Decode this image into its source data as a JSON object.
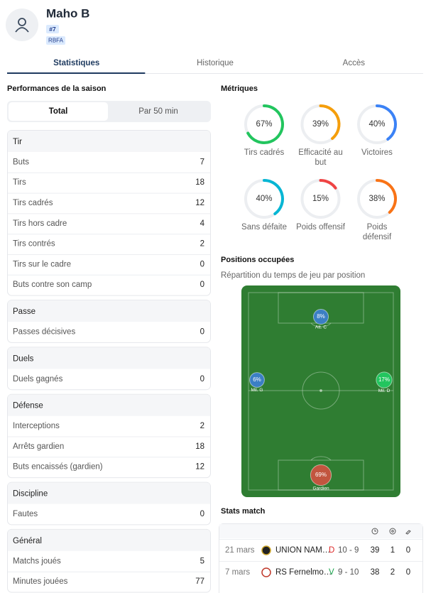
{
  "profile": {
    "name": "Maho B",
    "number": "#7",
    "club": "RBFA"
  },
  "tabs": {
    "items": [
      "Statistiques",
      "Historique",
      "Accès"
    ],
    "active": 0
  },
  "season": {
    "title": "Performances de la saison",
    "toggle": [
      "Total",
      "Par 50 min"
    ],
    "toggle_active": 0,
    "groups": [
      {
        "title": "Tir",
        "rows": [
          {
            "label": "Buts",
            "value": 7
          },
          {
            "label": "Tirs",
            "value": 18
          },
          {
            "label": "Tirs cadrés",
            "value": 12
          },
          {
            "label": "Tirs hors cadre",
            "value": 4
          },
          {
            "label": "Tirs contrés",
            "value": 2
          },
          {
            "label": "Tirs sur le cadre",
            "value": 0
          },
          {
            "label": "Buts contre son camp",
            "value": 0
          }
        ]
      },
      {
        "title": "Passe",
        "rows": [
          {
            "label": "Passes décisives",
            "value": 0
          }
        ]
      },
      {
        "title": "Duels",
        "rows": [
          {
            "label": "Duels gagnés",
            "value": 0
          }
        ]
      },
      {
        "title": "Défense",
        "rows": [
          {
            "label": "Interceptions",
            "value": 2
          },
          {
            "label": "Arrêts gardien",
            "value": 18
          },
          {
            "label": "Buts encaissés (gardien)",
            "value": 12
          }
        ]
      },
      {
        "title": "Discipline",
        "rows": [
          {
            "label": "Fautes",
            "value": 0
          }
        ]
      },
      {
        "title": "Général",
        "rows": [
          {
            "label": "Matchs joués",
            "value": 5
          },
          {
            "label": "Minutes jouées",
            "value": 77
          }
        ]
      }
    ]
  },
  "metrics": {
    "title": "Métriques",
    "items": [
      {
        "label": "Tirs cadrés",
        "value": 67,
        "value_label": "67%",
        "color": "#22c55e"
      },
      {
        "label": "Efficacité au but",
        "value": 39,
        "value_label": "39%",
        "color": "#f59e0b"
      },
      {
        "label": "Victoires",
        "value": 40,
        "value_label": "40%",
        "color": "#3b82f6"
      },
      {
        "label": "Sans défaite",
        "value": 40,
        "value_label": "40%",
        "color": "#06b6d4"
      },
      {
        "label": "Poids offensif",
        "value": 15,
        "value_label": "15%",
        "color": "#ef4444"
      },
      {
        "label": "Poids défensif",
        "value": 38,
        "value_label": "38%",
        "color": "#f97316"
      }
    ]
  },
  "positions": {
    "title": "Positions occupées",
    "subtitle": "Répartition du temps de jeu par position",
    "items": [
      {
        "label": "Att. C",
        "value": 8,
        "value_label": "8%",
        "color": "#3b7fc4"
      },
      {
        "label": "Mil. G",
        "value": 6,
        "value_label": "6%",
        "color": "#3b7fc4"
      },
      {
        "label": "Mil. D",
        "value": 17,
        "value_label": "17%",
        "color": "#22c55e"
      },
      {
        "label": "Gardien",
        "value": 69,
        "value_label": "69%",
        "color": "#c2553f"
      }
    ]
  },
  "matches": {
    "title": "Stats match",
    "rows": [
      {
        "date": "21 mars",
        "team": "UNION NAM…",
        "result": "D",
        "result_color": "#dc2626",
        "score": "10 - 9",
        "minutes": 39,
        "goals": 1,
        "assists": 0
      },
      {
        "date": "7 mars",
        "team": "RS Fernelmo…",
        "result": "V",
        "result_color": "#16a34a",
        "score": "9 - 10",
        "minutes": 38,
        "goals": 2,
        "assists": 0
      }
    ]
  }
}
